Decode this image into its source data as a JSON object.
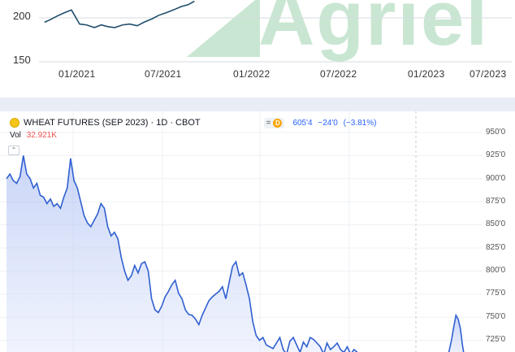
{
  "top_chart": {
    "y_ticks": [
      "200",
      "150"
    ],
    "x_ticks": [
      "01/2021",
      "07/2021",
      "01/2022",
      "07/2022",
      "01/2023",
      "07/2023"
    ],
    "watermark": "Agriel",
    "line_color": "#1f4e6b"
  },
  "legend": {
    "symbol": "WHEAT FUTURES (SEP 2023) · 1D · CBOT",
    "eye_symbol": "=",
    "badge": "D",
    "price": "605'4",
    "change": "−24'0",
    "change_pct": "(−3.81%)",
    "vol_label": "Vol",
    "vol_value": "32.921K",
    "collapse_glyph": "⌃"
  },
  "chart_data": [
    {
      "type": "line",
      "title": "",
      "xlabel": "",
      "ylabel": "",
      "x_ticks": [
        "01/2021",
        "07/2021",
        "01/2022",
        "07/2022",
        "01/2023",
        "07/2023"
      ],
      "y_ticks": [
        200,
        150
      ],
      "ylim": [
        150,
        225
      ],
      "xlim": [
        "2020-09",
        "2023-08"
      ],
      "series": [
        {
          "x": [
            "2020-10-20",
            "2020-11-01",
            "2020-11-15",
            "2020-12-01",
            "2020-12-15",
            "2021-01-01",
            "2021-01-15",
            "2021-02-01",
            "2021-02-15",
            "2021-03-01",
            "2021-03-15",
            "2021-04-01",
            "2021-04-15",
            "2021-05-01",
            "2021-05-15",
            "2021-06-01",
            "2021-06-15",
            "2021-07-01",
            "2021-07-15",
            "2021-08-01",
            "2021-08-15",
            "2021-08-28"
          ],
          "values": [
            195,
            198,
            202,
            206,
            209,
            193,
            192,
            189,
            192,
            190,
            189,
            192,
            193,
            191,
            195,
            199,
            203,
            206,
            209,
            213,
            215,
            219
          ]
        }
      ],
      "grid": true
    },
    {
      "type": "line",
      "title": "WHEAT FUTURES (SEP 2023) · 1D · CBOT",
      "xlabel": "",
      "ylabel": "",
      "y_ticks": [
        "950'0",
        "925'0",
        "900'0",
        "875'0",
        "850'0",
        "825'0",
        "800'0",
        "775'0",
        "750'0",
        "725'0"
      ],
      "ylim": [
        712,
        958
      ],
      "series": [
        {
          "values": [
            900,
            905,
            898,
            895,
            902,
            925,
            905,
            900,
            890,
            895,
            882,
            880,
            873,
            878,
            870,
            873,
            868,
            880,
            890,
            922,
            898,
            890,
            875,
            860,
            852,
            848,
            855,
            862,
            873,
            868,
            848,
            838,
            842,
            835,
            815,
            800,
            790,
            795,
            806,
            798,
            808,
            810,
            800,
            770,
            758,
            755,
            762,
            772,
            778,
            785,
            790,
            776,
            770,
            758,
            753,
            752,
            748,
            742,
            752,
            760,
            768,
            772,
            775,
            778,
            783,
            770,
            788,
            805,
            810,
            795,
            798,
            785,
            770,
            745,
            730,
            725,
            728,
            720,
            718,
            716,
            722,
            728,
            715,
            710,
            724,
            728,
            720,
            712,
            723,
            718,
            728,
            726,
            722,
            718,
            710,
            722,
            715,
            718,
            722,
            715,
            712,
            718,
            710,
            715,
            712,
            710,
            705,
            715,
            726,
            740,
            752,
            748,
            738,
            720,
            705
          ]
        }
      ],
      "grid": true
    }
  ]
}
